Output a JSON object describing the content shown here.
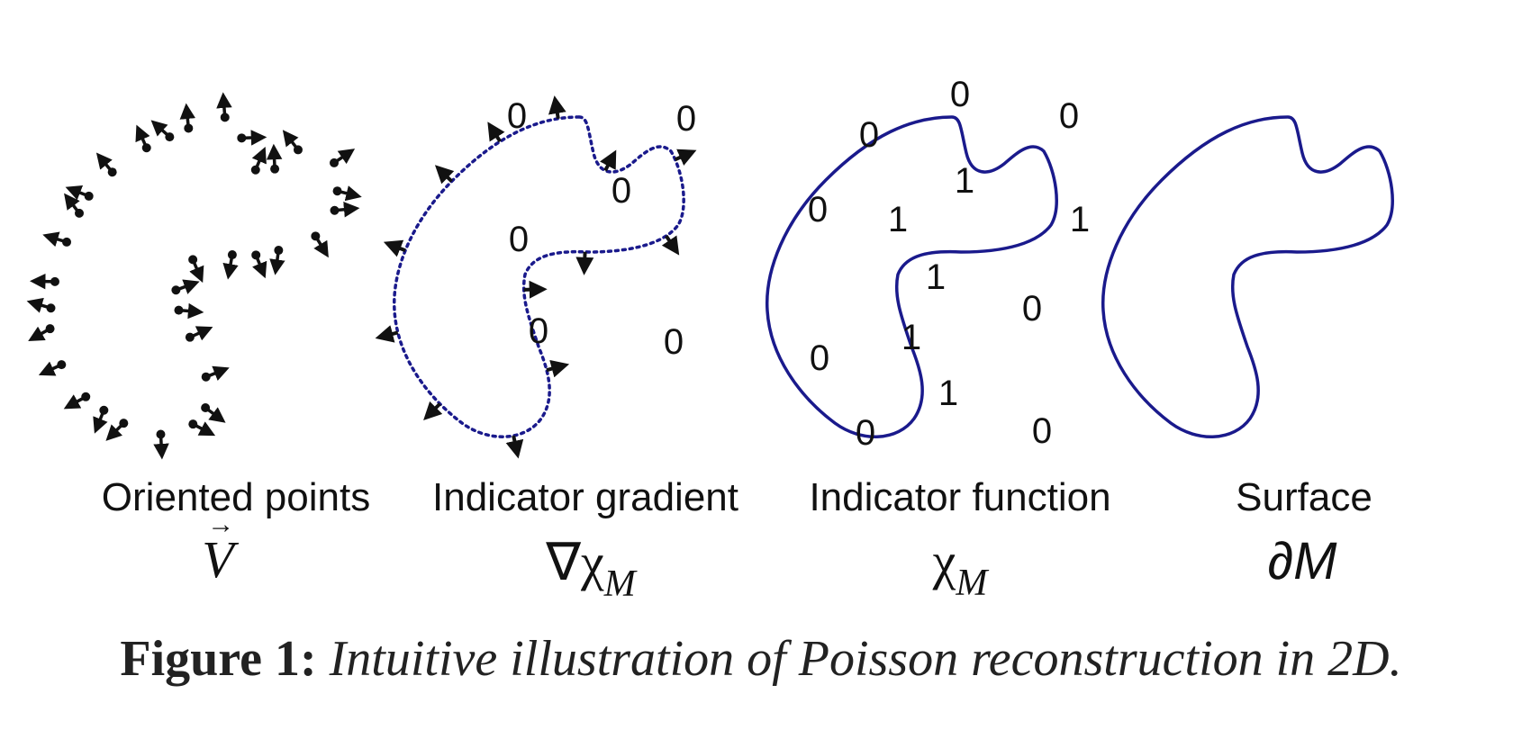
{
  "panels": [
    {
      "label": "Oriented points",
      "symbol": "V"
    },
    {
      "label": "Indicator gradient",
      "symbol_main": "∇χ",
      "symbol_sub": "M"
    },
    {
      "label": "Indicator function",
      "symbol_main": "χ",
      "symbol_sub": "M"
    },
    {
      "label": "Surface",
      "symbol_main": "∂",
      "symbol_it": "M"
    }
  ],
  "gradient_panel_values": [
    "0",
    "0",
    "0",
    "0",
    "0",
    "0"
  ],
  "function_panel_values": {
    "outside": [
      "0",
      "0",
      "0",
      "0",
      "0",
      "0",
      "0",
      "0"
    ],
    "inside": [
      "1",
      "1",
      "1",
      "1",
      "1",
      "1"
    ]
  },
  "caption": {
    "label": "Figure 1:",
    "text": "Intuitive illustration of Poisson reconstruction in 2D."
  },
  "colors": {
    "curve": "#1a1a8c",
    "ink": "#111111"
  }
}
